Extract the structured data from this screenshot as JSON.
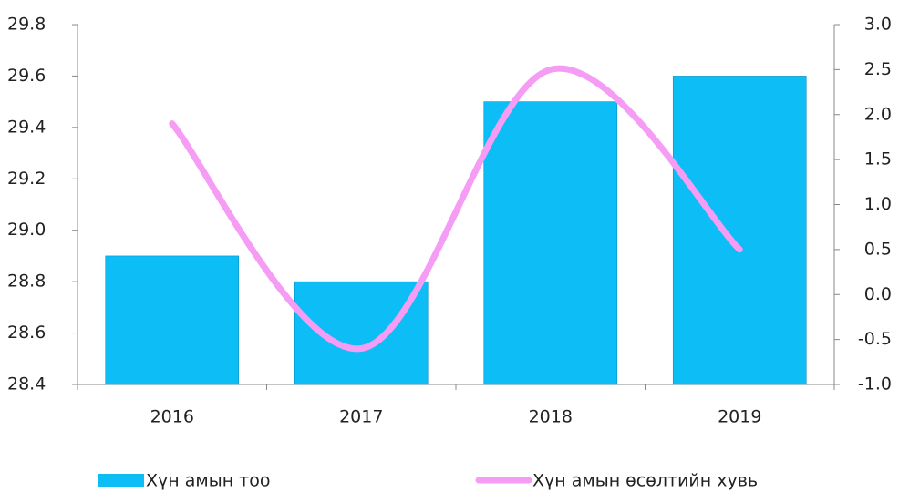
{
  "chart_data": {
    "type": "bar_line",
    "categories": [
      "2016",
      "2017",
      "2018",
      "2019"
    ],
    "series": [
      {
        "name": "Хүн амын тоо",
        "type": "bar",
        "color": "#0dbdf6",
        "values": [
          28.9,
          28.8,
          29.5,
          29.6
        ]
      },
      {
        "name": "Хүн амын өсөлтийн хувь",
        "type": "line",
        "axis": "y2",
        "color": "#f59cf5",
        "values": [
          1.9,
          -0.6,
          2.5,
          0.5
        ]
      }
    ],
    "ylim": [
      28.4,
      29.8
    ],
    "yticks": [
      28.4,
      28.6,
      28.8,
      {
        "value": 29.0,
        "label": "29.0"
      },
      29.2,
      29.4,
      29.6,
      29.8
    ],
    "y2lim": [
      -1.0,
      3.0
    ],
    "y2ticks": [
      {
        "value": -1.0,
        "label": "-1.0"
      },
      -0.5,
      {
        "value": 0.0,
        "label": "0.0"
      },
      0.5,
      {
        "value": 1.0,
        "label": "1.0"
      },
      1.5,
      {
        "value": 2.0,
        "label": "2.0"
      },
      2.5,
      {
        "value": 3.0,
        "label": "3.0"
      }
    ],
    "legend": "bottom"
  }
}
